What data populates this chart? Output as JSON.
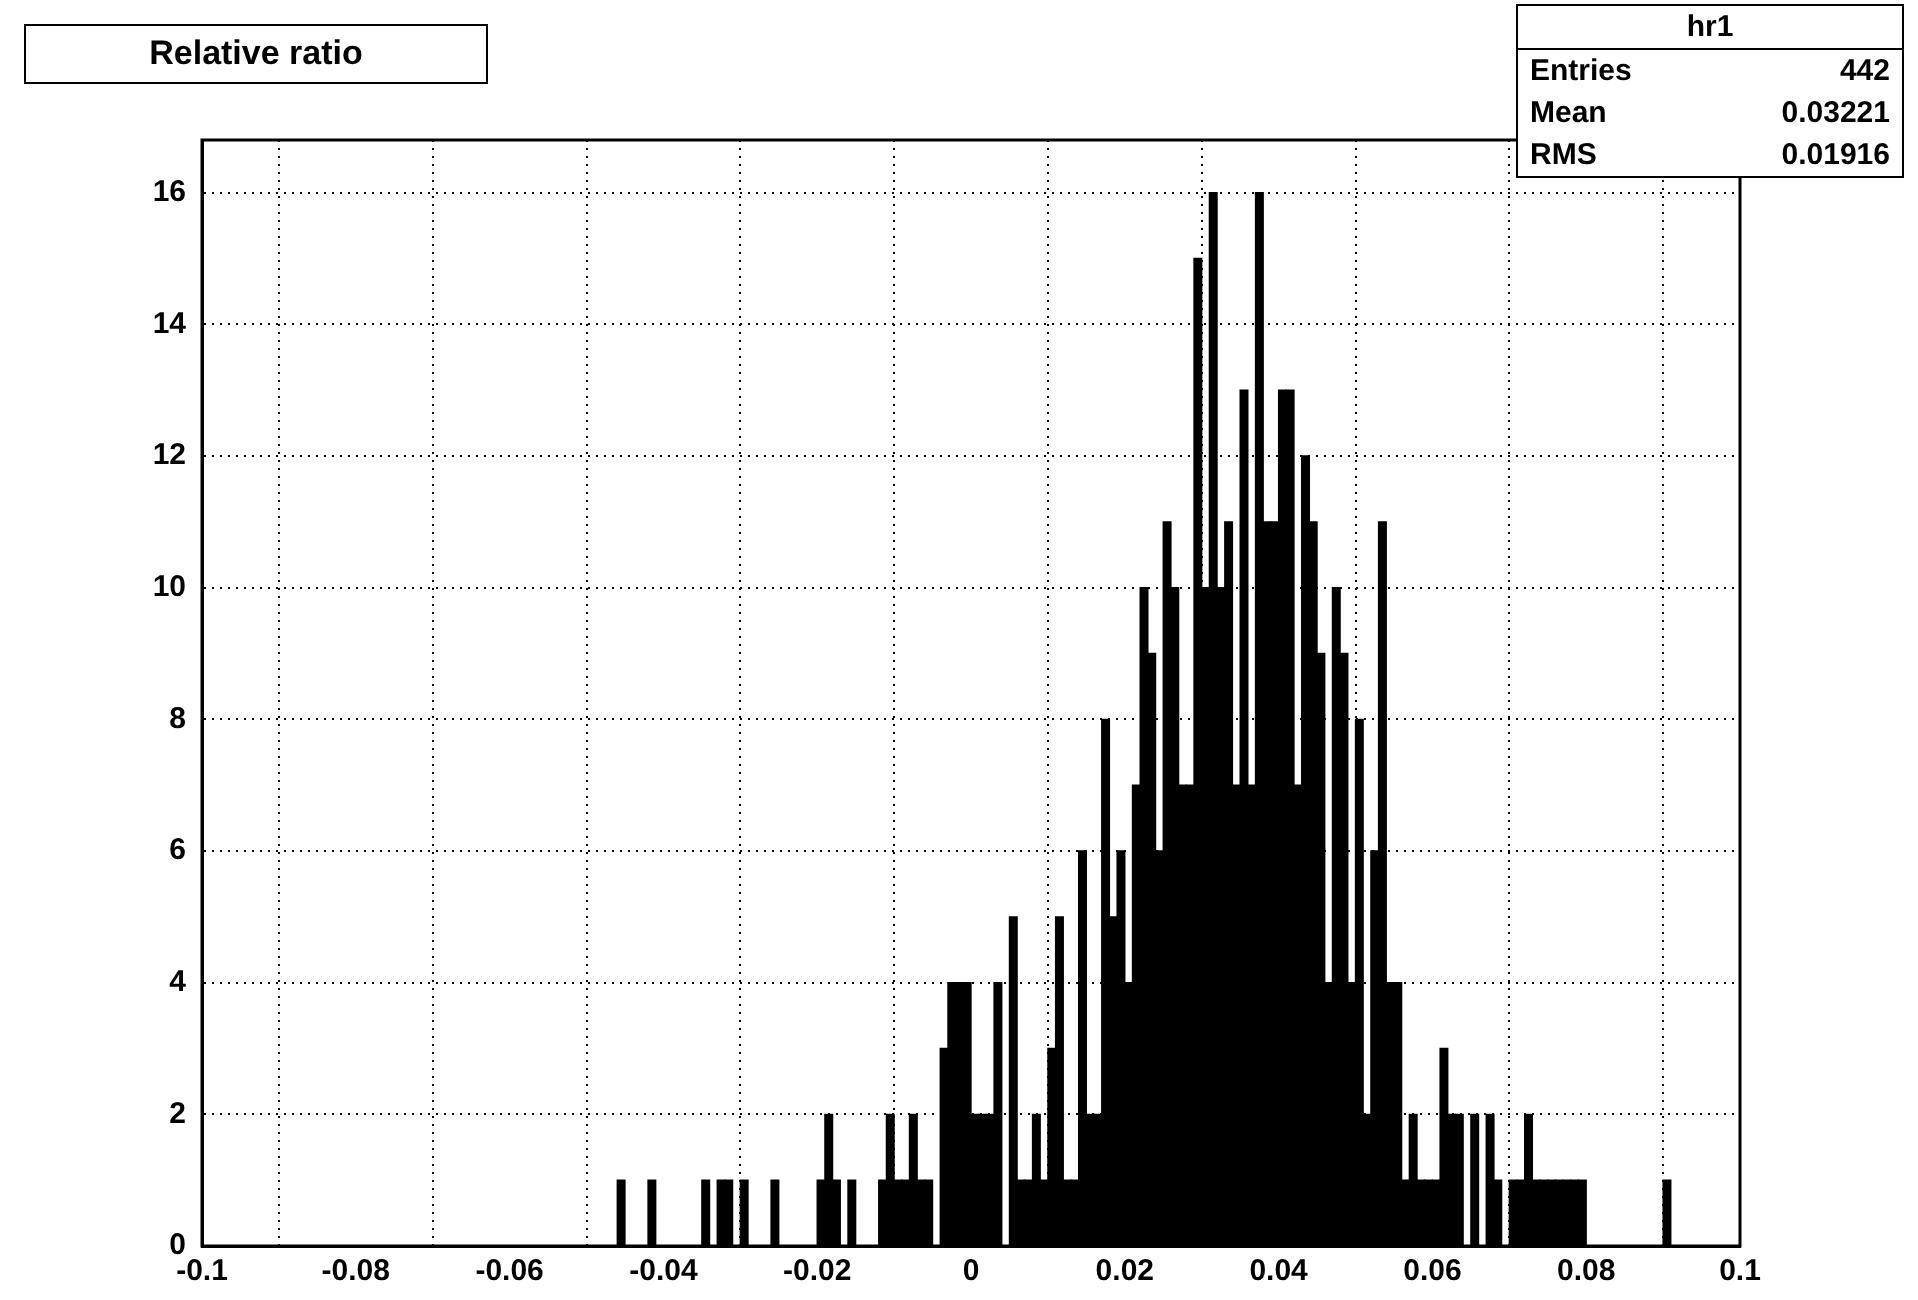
{
  "chart_data": {
    "type": "histogram",
    "title": "Relative ratio",
    "bins": [
      -0.047,
      -0.046,
      -0.045,
      -0.044,
      -0.043,
      -0.042,
      -0.041,
      -0.04,
      -0.039,
      -0.038,
      -0.037,
      -0.036,
      -0.035,
      -0.034,
      -0.033,
      -0.032,
      -0.031,
      -0.03,
      -0.029,
      -0.028,
      -0.027,
      -0.026,
      -0.025,
      -0.024,
      -0.023,
      -0.022,
      -0.021,
      -0.02,
      -0.019,
      -0.018,
      -0.017,
      -0.016,
      -0.015,
      -0.014,
      -0.013,
      -0.012,
      -0.011,
      -0.01,
      -0.009,
      -0.008,
      -0.007,
      -0.006,
      -0.005,
      -0.004,
      -0.003,
      -0.002,
      -0.001,
      0,
      0.001,
      0.002,
      0.003,
      0.004,
      0.005,
      0.006,
      0.007,
      0.008,
      0.009,
      0.01,
      0.011,
      0.012,
      0.013,
      0.014,
      0.015,
      0.016,
      0.017,
      0.018,
      0.019,
      0.02,
      0.021,
      0.022,
      0.023,
      0.024,
      0.025,
      0.026,
      0.027,
      0.028,
      0.029,
      0.03,
      0.031,
      0.032,
      0.033,
      0.034,
      0.035,
      0.036,
      0.037,
      0.038,
      0.039,
      0.04,
      0.041,
      0.042,
      0.043,
      0.044,
      0.045,
      0.046,
      0.047,
      0.048,
      0.049,
      0.05,
      0.051,
      0.052,
      0.053,
      0.054,
      0.055,
      0.056,
      0.057,
      0.058,
      0.059,
      0.06,
      0.061,
      0.062,
      0.063,
      0.064,
      0.065,
      0.066,
      0.067,
      0.068,
      0.069,
      0.07,
      0.071,
      0.072,
      0.073,
      0.074,
      0.075,
      0.076,
      0.077,
      0.078,
      0.079,
      0.08,
      0.081,
      0.082,
      0.083,
      0.084,
      0.085,
      0.086,
      0.087,
      0.088,
      0.089,
      0.09,
      0.091
    ],
    "values": [
      0,
      1,
      0,
      0,
      0,
      1,
      0,
      0,
      0,
      0,
      0,
      0,
      1,
      0,
      1,
      1,
      0,
      1,
      0,
      0,
      0,
      1,
      0,
      0,
      0,
      0,
      0,
      1,
      2,
      1,
      0,
      1,
      0,
      0,
      0,
      1,
      2,
      1,
      1,
      2,
      1,
      1,
      0,
      3,
      4,
      4,
      4,
      2,
      2,
      2,
      4,
      0,
      5,
      1,
      1,
      2,
      1,
      3,
      5,
      1,
      1,
      6,
      2,
      2,
      8,
      5,
      6,
      4,
      7,
      10,
      9,
      6,
      11,
      10,
      7,
      7,
      15,
      10,
      16,
      10,
      11,
      7,
      13,
      7,
      16,
      11,
      11,
      13,
      13,
      7,
      12,
      11,
      9,
      4,
      10,
      9,
      4,
      8,
      2,
      6,
      11,
      4,
      4,
      1,
      2,
      1,
      1,
      1,
      3,
      2,
      2,
      0,
      2,
      0,
      2,
      1,
      0,
      1,
      1,
      2,
      1,
      1,
      1,
      1,
      1,
      1,
      1,
      0,
      0,
      0,
      0,
      0,
      0,
      0,
      0,
      0,
      0,
      1
    ],
    "color": "#000000",
    "xlim": [
      -0.1,
      0.1
    ],
    "xticks": [
      -0.1,
      -0.08,
      -0.06,
      -0.04,
      -0.02,
      0,
      0.02,
      0.04,
      0.06,
      0.08,
      0.1
    ],
    "ylim": [
      0,
      16.8
    ],
    "yticks": [
      0,
      2,
      4,
      6,
      8,
      10,
      12,
      14,
      16
    ],
    "grid": true,
    "annotations": [
      "hr1",
      "Entries 442",
      "Mean 0.03221",
      "RMS 0.01916"
    ]
  }
}
